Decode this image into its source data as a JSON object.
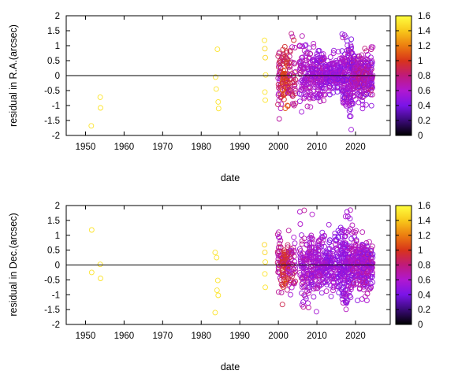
{
  "chart_data": [
    {
      "type": "scatter",
      "xlabel": "date",
      "ylabel": "residual in R.A.(arcsec)",
      "xlim": [
        1945,
        2029
      ],
      "ylim": [
        -2,
        2
      ],
      "xticks": [
        "1950",
        "1960",
        "1970",
        "1980",
        "1990",
        "2000",
        "2010",
        "2020"
      ],
      "yticks": [
        "-2",
        "-1.5",
        "-1",
        "-0.5",
        "0",
        "0.5",
        "1",
        "1.5",
        "2"
      ],
      "zero_line": true,
      "marker": "open-circle",
      "colorbar": {
        "min": 0,
        "max": 1.6,
        "ticks": [
          "0",
          "0.2",
          "0.4",
          "0.6",
          "0.8",
          "1",
          "1.2",
          "1.4",
          "1.6"
        ],
        "palette": [
          "#000000",
          "#3a0a78",
          "#7a14e8",
          "#b018d0",
          "#c01a7a",
          "#d8341a",
          "#ec7e10",
          "#f8c81a",
          "#ffff40"
        ]
      },
      "sparse_points": [
        {
          "x": 1951.5,
          "y": -1.68,
          "c": 1.5
        },
        {
          "x": 1953.8,
          "y": -0.72,
          "c": 1.5
        },
        {
          "x": 1953.9,
          "y": -1.08,
          "c": 1.5
        },
        {
          "x": 1983.7,
          "y": -0.05,
          "c": 1.5
        },
        {
          "x": 1983.9,
          "y": -0.45,
          "c": 1.5
        },
        {
          "x": 1984.2,
          "y": 0.88,
          "c": 1.5
        },
        {
          "x": 1984.4,
          "y": -0.88,
          "c": 1.5
        },
        {
          "x": 1984.5,
          "y": -1.1,
          "c": 1.5
        },
        {
          "x": 1996.4,
          "y": 1.18,
          "c": 1.5
        },
        {
          "x": 1996.5,
          "y": 0.9,
          "c": 1.45
        },
        {
          "x": 1996.6,
          "y": 0.6,
          "c": 1.45
        },
        {
          "x": 1996.7,
          "y": 0.02,
          "c": 1.5
        },
        {
          "x": 1996.5,
          "y": -0.55,
          "c": 1.5
        },
        {
          "x": 1996.6,
          "y": -0.82,
          "c": 1.5
        }
      ],
      "dense_clusters": [
        {
          "x0": 1999.8,
          "x1": 2001.0,
          "n": 40,
          "sd": 0.6,
          "cmin": 0.55,
          "cmax": 0.95
        },
        {
          "x0": 2001.0,
          "x1": 2002.5,
          "n": 70,
          "sd": 0.45,
          "cmin": 0.8,
          "cmax": 1.15
        },
        {
          "x0": 2002.5,
          "x1": 2004.5,
          "n": 50,
          "sd": 0.55,
          "cmin": 0.6,
          "cmax": 0.95
        },
        {
          "x0": 2005.5,
          "x1": 2008.5,
          "n": 100,
          "sd": 0.5,
          "cmin": 0.45,
          "cmax": 0.75
        },
        {
          "x0": 2008.5,
          "x1": 2012.0,
          "n": 140,
          "sd": 0.4,
          "cmin": 0.45,
          "cmax": 0.7
        },
        {
          "x0": 2012.0,
          "x1": 2016.5,
          "n": 160,
          "sd": 0.3,
          "cmin": 0.4,
          "cmax": 0.65
        },
        {
          "x0": 2016.5,
          "x1": 2019.0,
          "n": 160,
          "sd": 0.65,
          "cmin": 0.4,
          "cmax": 0.7
        },
        {
          "x0": 2019.0,
          "x1": 2024.5,
          "n": 280,
          "sd": 0.4,
          "cmin": 0.4,
          "cmax": 0.8
        }
      ]
    },
    {
      "type": "scatter",
      "xlabel": "date",
      "ylabel": "residual in Dec.(arcsec)",
      "xlim": [
        1945,
        2029
      ],
      "ylim": [
        -2,
        2
      ],
      "xticks": [
        "1950",
        "1960",
        "1970",
        "1980",
        "1990",
        "2000",
        "2010",
        "2020"
      ],
      "yticks": [
        "-2",
        "-1.5",
        "-1",
        "-0.5",
        "0",
        "0.5",
        "1",
        "1.5",
        "2"
      ],
      "zero_line": true,
      "marker": "open-circle",
      "colorbar": {
        "min": 0,
        "max": 1.6,
        "ticks": [
          "0",
          "0.2",
          "0.4",
          "0.6",
          "0.8",
          "1",
          "1.2",
          "1.4",
          "1.6"
        ],
        "palette": [
          "#000000",
          "#3a0a78",
          "#7a14e8",
          "#b018d0",
          "#c01a7a",
          "#d8341a",
          "#ec7e10",
          "#f8c81a",
          "#ffff40"
        ]
      },
      "sparse_points": [
        {
          "x": 1951.6,
          "y": 1.18,
          "c": 1.5
        },
        {
          "x": 1951.6,
          "y": -0.25,
          "c": 1.5
        },
        {
          "x": 1953.8,
          "y": 0.02,
          "c": 1.5
        },
        {
          "x": 1953.9,
          "y": -0.45,
          "c": 1.5
        },
        {
          "x": 1983.6,
          "y": 0.42,
          "c": 1.5
        },
        {
          "x": 1984.0,
          "y": 0.25,
          "c": 1.5
        },
        {
          "x": 1984.3,
          "y": -0.52,
          "c": 1.5
        },
        {
          "x": 1984.1,
          "y": -0.85,
          "c": 1.5
        },
        {
          "x": 1984.4,
          "y": -1.02,
          "c": 1.5
        },
        {
          "x": 1983.6,
          "y": -1.6,
          "c": 1.5
        },
        {
          "x": 1996.4,
          "y": 0.68,
          "c": 1.45
        },
        {
          "x": 1996.5,
          "y": 0.42,
          "c": 1.45
        },
        {
          "x": 1996.6,
          "y": 0.1,
          "c": 1.5
        },
        {
          "x": 1996.5,
          "y": -0.3,
          "c": 1.5
        },
        {
          "x": 1996.6,
          "y": -0.75,
          "c": 1.5
        }
      ],
      "dense_clusters": [
        {
          "x0": 1999.8,
          "x1": 2001.0,
          "n": 40,
          "sd": 0.55,
          "cmin": 0.55,
          "cmax": 0.95
        },
        {
          "x0": 2001.0,
          "x1": 2002.5,
          "n": 70,
          "sd": 0.4,
          "cmin": 0.75,
          "cmax": 1.1
        },
        {
          "x0": 2002.5,
          "x1": 2004.5,
          "n": 50,
          "sd": 0.5,
          "cmin": 0.55,
          "cmax": 0.9
        },
        {
          "x0": 2005.5,
          "x1": 2008.5,
          "n": 110,
          "sd": 0.55,
          "cmin": 0.45,
          "cmax": 0.75
        },
        {
          "x0": 2008.5,
          "x1": 2012.0,
          "n": 150,
          "sd": 0.5,
          "cmin": 0.45,
          "cmax": 0.7
        },
        {
          "x0": 2012.0,
          "x1": 2016.5,
          "n": 170,
          "sd": 0.5,
          "cmin": 0.4,
          "cmax": 0.65
        },
        {
          "x0": 2016.5,
          "x1": 2019.0,
          "n": 160,
          "sd": 0.65,
          "cmin": 0.4,
          "cmax": 0.7
        },
        {
          "x0": 2019.0,
          "x1": 2024.5,
          "n": 280,
          "sd": 0.45,
          "cmin": 0.4,
          "cmax": 0.75
        }
      ]
    }
  ]
}
